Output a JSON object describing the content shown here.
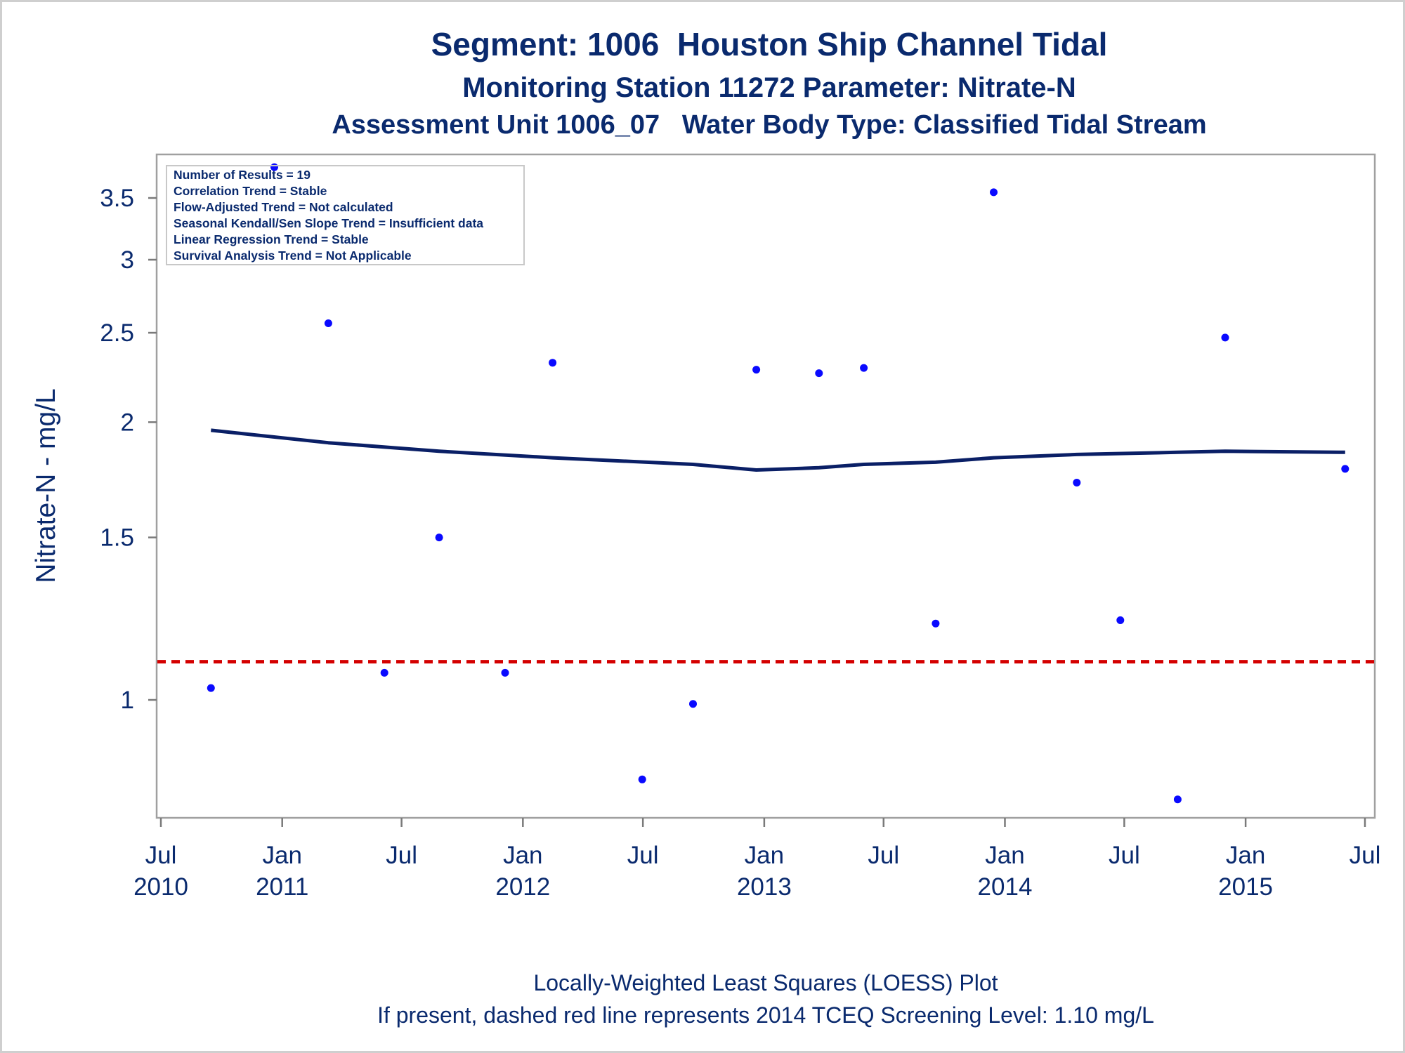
{
  "title": "Segment: 1006  Houston Ship Channel Tidal",
  "subtitle1": "Monitoring Station 11272 Parameter: Nitrate-N",
  "subtitle2": "Assessment Unit 1006_07   Water Body Type: Classified Tidal Stream",
  "stats": [
    "Number of Results = 19",
    "Correlation Trend = Stable",
    "Flow-Adjusted Trend = Not calculated",
    "Seasonal Kendall/Sen Slope Trend = Insufficient data",
    "Linear Regression Trend = Stable",
    "Survival Analysis Trend = Not Applicable"
  ],
  "footnotes": [
    "Locally-Weighted Least Squares (LOESS) Plot",
    "If present, dashed red line represents 2014 TCEQ Screening Level: 1.10 mg/L"
  ],
  "colors": {
    "text": "#0a2a6e",
    "points": "#0a0aff",
    "loess": "#0a1f66",
    "screening": "#d40000",
    "frame": "#a0a0a0"
  },
  "chart_data": {
    "type": "scatter",
    "ylabel": "Nitrate-N - mg/L",
    "xlabel": "",
    "y_scale": "log",
    "xlim": [
      "2010-07-01",
      "2015-07-01"
    ],
    "ylim": [
      0.75,
      3.8
    ],
    "x_ticks": [
      {
        "date": "2010-07-01",
        "month": "Jul",
        "year": "2010"
      },
      {
        "date": "2011-01-01",
        "month": "Jan",
        "year": "2011"
      },
      {
        "date": "2011-07-01",
        "month": "Jul",
        "year": ""
      },
      {
        "date": "2012-01-01",
        "month": "Jan",
        "year": "2012"
      },
      {
        "date": "2012-07-01",
        "month": "Jul",
        "year": ""
      },
      {
        "date": "2013-01-01",
        "month": "Jan",
        "year": "2013"
      },
      {
        "date": "2013-07-01",
        "month": "Jul",
        "year": ""
      },
      {
        "date": "2014-01-01",
        "month": "Jan",
        "year": "2014"
      },
      {
        "date": "2014-07-01",
        "month": "Jul",
        "year": ""
      },
      {
        "date": "2015-01-01",
        "month": "Jan",
        "year": "2015"
      },
      {
        "date": "2015-07-01",
        "month": "Jul",
        "year": ""
      }
    ],
    "y_ticks": [
      {
        "value": 1,
        "label": "1"
      },
      {
        "value": 1.5,
        "label": "1.5"
      },
      {
        "value": 2,
        "label": "2"
      },
      {
        "value": 2.5,
        "label": "2.5"
      },
      {
        "value": 3,
        "label": "3"
      },
      {
        "value": 3.5,
        "label": "3.5"
      }
    ],
    "screening_level": 1.1,
    "points": [
      {
        "x": "2010-09-15",
        "y": 1.03
      },
      {
        "x": "2010-12-20",
        "y": 3.78
      },
      {
        "x": "2011-03-12",
        "y": 2.56
      },
      {
        "x": "2011-06-05",
        "y": 1.07
      },
      {
        "x": "2011-08-27",
        "y": 1.5
      },
      {
        "x": "2011-12-05",
        "y": 1.07
      },
      {
        "x": "2012-02-15",
        "y": 2.32
      },
      {
        "x": "2012-06-30",
        "y": 0.82
      },
      {
        "x": "2012-09-15",
        "y": 0.99
      },
      {
        "x": "2012-12-20",
        "y": 2.28
      },
      {
        "x": "2013-03-25",
        "y": 2.26
      },
      {
        "x": "2013-06-01",
        "y": 2.29
      },
      {
        "x": "2013-09-18",
        "y": 1.21
      },
      {
        "x": "2013-12-15",
        "y": 3.55
      },
      {
        "x": "2014-04-20",
        "y": 1.72
      },
      {
        "x": "2014-06-25",
        "y": 1.22
      },
      {
        "x": "2014-09-20",
        "y": 0.78
      },
      {
        "x": "2014-12-01",
        "y": 2.47
      },
      {
        "x": "2015-06-01",
        "y": 1.78
      }
    ],
    "loess": [
      {
        "x": "2010-09-15",
        "y": 1.96
      },
      {
        "x": "2011-03-12",
        "y": 1.9
      },
      {
        "x": "2011-08-27",
        "y": 1.86
      },
      {
        "x": "2012-02-15",
        "y": 1.83
      },
      {
        "x": "2012-09-15",
        "y": 1.8
      },
      {
        "x": "2012-12-20",
        "y": 1.775
      },
      {
        "x": "2013-03-25",
        "y": 1.785
      },
      {
        "x": "2013-06-01",
        "y": 1.8
      },
      {
        "x": "2013-09-18",
        "y": 1.81
      },
      {
        "x": "2013-12-15",
        "y": 1.83
      },
      {
        "x": "2014-04-20",
        "y": 1.845
      },
      {
        "x": "2014-09-20",
        "y": 1.855
      },
      {
        "x": "2014-12-01",
        "y": 1.86
      },
      {
        "x": "2015-06-01",
        "y": 1.855
      }
    ]
  }
}
